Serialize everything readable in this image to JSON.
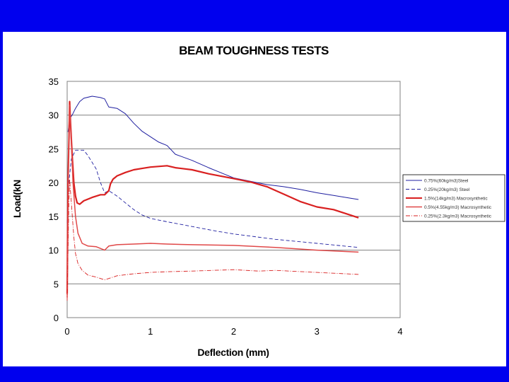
{
  "chart_data": {
    "type": "line",
    "title": "BEAM TOUGHNESS TESTS",
    "xlabel": "Deflection (mm)",
    "ylabel": "Load(kN",
    "xlim": [
      0,
      4
    ],
    "ylim": [
      0,
      35
    ],
    "xticks": [
      "0",
      "1",
      "2",
      "3",
      "4"
    ],
    "yticks": [
      "0",
      "5",
      "10",
      "15",
      "20",
      "25",
      "30",
      "35"
    ],
    "grid": "horizontal",
    "legend_position": "right",
    "colors": {
      "blue": "#1f1fa0",
      "red": "#d92020",
      "light_red": "#e04848",
      "frame": "#0000ee"
    },
    "series": [
      {
        "name": "0.75%(60kg/m3)Steel",
        "color": "#1f1fa0",
        "width": 1,
        "dash": "",
        "points": [
          [
            0.01,
            27.5
          ],
          [
            0.03,
            29.5
          ],
          [
            0.06,
            30.0
          ],
          [
            0.1,
            31.0
          ],
          [
            0.15,
            32.0
          ],
          [
            0.2,
            32.5
          ],
          [
            0.3,
            32.8
          ],
          [
            0.4,
            32.6
          ],
          [
            0.45,
            32.4
          ],
          [
            0.5,
            31.2
          ],
          [
            0.6,
            31.0
          ],
          [
            0.7,
            30.2
          ],
          [
            0.8,
            28.8
          ],
          [
            0.9,
            27.6
          ],
          [
            1.0,
            26.8
          ],
          [
            1.1,
            26.0
          ],
          [
            1.2,
            25.5
          ],
          [
            1.3,
            24.2
          ],
          [
            1.5,
            23.3
          ],
          [
            1.7,
            22.2
          ],
          [
            1.9,
            21.2
          ],
          [
            2.0,
            20.7
          ],
          [
            2.2,
            20.2
          ],
          [
            2.4,
            19.7
          ],
          [
            2.6,
            19.4
          ],
          [
            2.8,
            19.0
          ],
          [
            3.0,
            18.5
          ],
          [
            3.2,
            18.1
          ],
          [
            3.4,
            17.7
          ],
          [
            3.5,
            17.5
          ]
        ]
      },
      {
        "name": "0.25%(20kg/m3) Steel",
        "color": "#1f1fa0",
        "width": 0.9,
        "dash": "5 3",
        "points": [
          [
            0.0,
            14.0
          ],
          [
            0.02,
            20.0
          ],
          [
            0.05,
            23.5
          ],
          [
            0.1,
            24.8
          ],
          [
            0.2,
            24.8
          ],
          [
            0.25,
            24.0
          ],
          [
            0.3,
            23.0
          ],
          [
            0.35,
            22.0
          ],
          [
            0.4,
            20.0
          ],
          [
            0.45,
            18.5
          ],
          [
            0.5,
            18.8
          ],
          [
            0.6,
            18.0
          ],
          [
            0.7,
            17.0
          ],
          [
            0.8,
            16.0
          ],
          [
            0.9,
            15.2
          ],
          [
            1.0,
            14.7
          ],
          [
            1.2,
            14.2
          ],
          [
            1.5,
            13.5
          ],
          [
            1.8,
            12.8
          ],
          [
            2.0,
            12.4
          ],
          [
            2.5,
            11.6
          ],
          [
            3.0,
            11.0
          ],
          [
            3.5,
            10.4
          ]
        ]
      },
      {
        "name": "1.5%(14kg/m3) Macrosynthetic",
        "color": "#d92020",
        "width": 2.2,
        "dash": "",
        "points": [
          [
            0.0,
            3.5
          ],
          [
            0.01,
            20.0
          ],
          [
            0.02,
            26.0
          ],
          [
            0.03,
            32.0
          ],
          [
            0.04,
            29.0
          ],
          [
            0.06,
            24.0
          ],
          [
            0.08,
            20.0
          ],
          [
            0.1,
            18.0
          ],
          [
            0.12,
            17.0
          ],
          [
            0.15,
            16.8
          ],
          [
            0.2,
            17.3
          ],
          [
            0.3,
            17.8
          ],
          [
            0.4,
            18.2
          ],
          [
            0.45,
            18.2
          ],
          [
            0.5,
            18.8
          ],
          [
            0.52,
            19.8
          ],
          [
            0.55,
            20.5
          ],
          [
            0.6,
            21.0
          ],
          [
            0.7,
            21.5
          ],
          [
            0.8,
            21.9
          ],
          [
            0.9,
            22.1
          ],
          [
            1.0,
            22.3
          ],
          [
            1.2,
            22.5
          ],
          [
            1.3,
            22.2
          ],
          [
            1.5,
            21.9
          ],
          [
            1.7,
            21.3
          ],
          [
            2.0,
            20.6
          ],
          [
            2.2,
            20.1
          ],
          [
            2.4,
            19.4
          ],
          [
            2.6,
            18.3
          ],
          [
            2.8,
            17.2
          ],
          [
            3.0,
            16.4
          ],
          [
            3.2,
            16.0
          ],
          [
            3.4,
            15.2
          ],
          [
            3.5,
            14.8
          ]
        ]
      },
      {
        "name": "0.5%(4.55kg/m3) Macrosynthetic",
        "color": "#e04848",
        "width": 1.5,
        "dash": "",
        "points": [
          [
            0.0,
            3.0
          ],
          [
            0.01,
            15.0
          ],
          [
            0.02,
            28.0
          ],
          [
            0.03,
            31.5
          ],
          [
            0.05,
            26.0
          ],
          [
            0.07,
            20.0
          ],
          [
            0.1,
            15.0
          ],
          [
            0.13,
            12.5
          ],
          [
            0.18,
            11.0
          ],
          [
            0.25,
            10.6
          ],
          [
            0.35,
            10.5
          ],
          [
            0.45,
            10.0
          ],
          [
            0.5,
            10.6
          ],
          [
            0.6,
            10.8
          ],
          [
            0.8,
            10.9
          ],
          [
            1.0,
            11.0
          ],
          [
            1.2,
            10.9
          ],
          [
            1.5,
            10.8
          ],
          [
            2.0,
            10.7
          ],
          [
            2.5,
            10.4
          ],
          [
            3.0,
            10.0
          ],
          [
            3.5,
            9.7
          ]
        ]
      },
      {
        "name": "0.25%(2.3kg/m3) Macrosynthetic",
        "color": "#d92020",
        "width": 0.9,
        "dash": "6 2 1 2",
        "points": [
          [
            0.0,
            2.5
          ],
          [
            0.01,
            10.0
          ],
          [
            0.02,
            17.0
          ],
          [
            0.03,
            20.5
          ],
          [
            0.05,
            17.0
          ],
          [
            0.08,
            12.0
          ],
          [
            0.1,
            9.5
          ],
          [
            0.13,
            8.0
          ],
          [
            0.18,
            7.0
          ],
          [
            0.25,
            6.3
          ],
          [
            0.35,
            6.0
          ],
          [
            0.45,
            5.6
          ],
          [
            0.5,
            5.8
          ],
          [
            0.6,
            6.2
          ],
          [
            0.8,
            6.5
          ],
          [
            1.0,
            6.7
          ],
          [
            1.2,
            6.8
          ],
          [
            1.5,
            6.9
          ],
          [
            2.0,
            7.1
          ],
          [
            2.3,
            6.9
          ],
          [
            2.5,
            7.0
          ],
          [
            3.0,
            6.7
          ],
          [
            3.5,
            6.4
          ]
        ]
      }
    ]
  }
}
